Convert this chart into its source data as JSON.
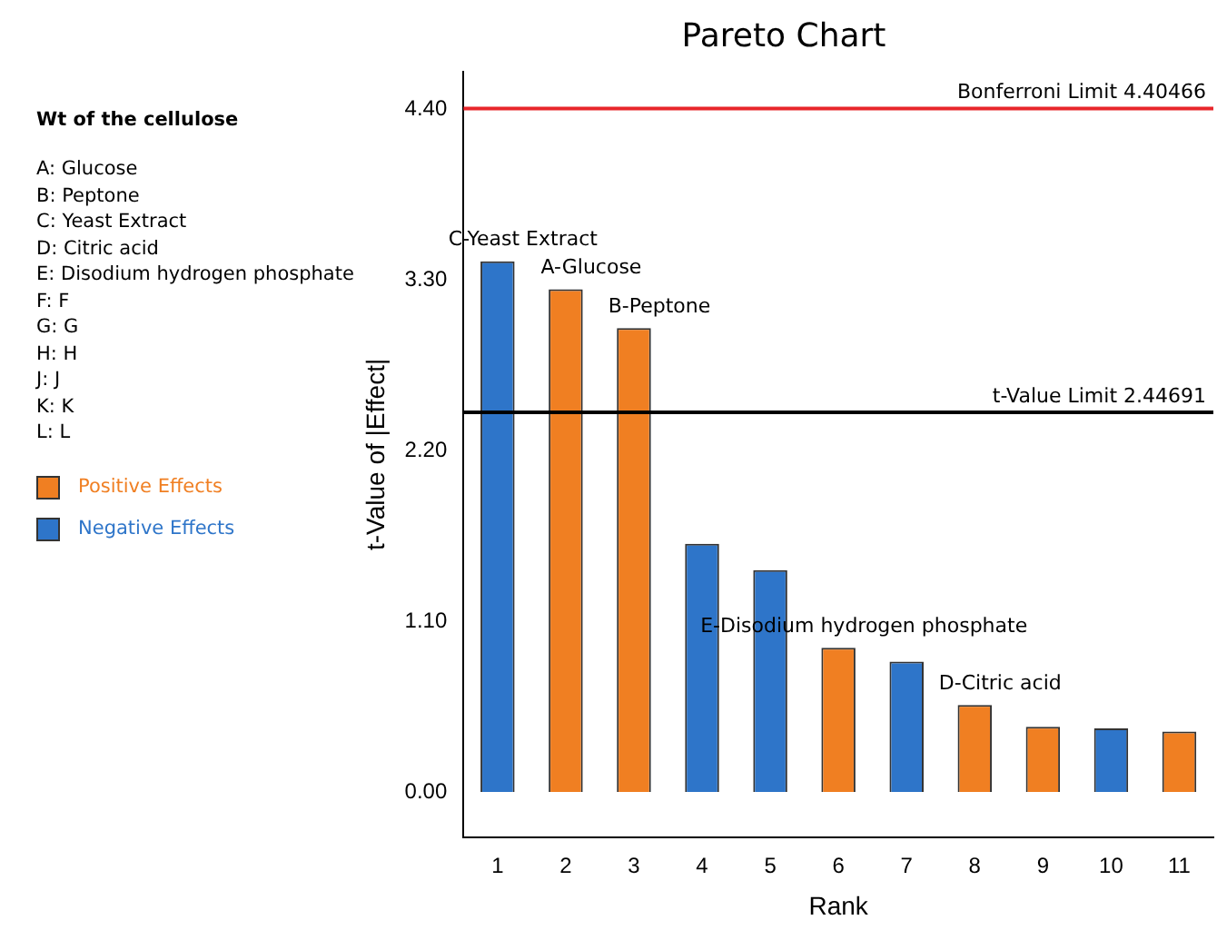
{
  "chart_data": {
    "type": "bar",
    "title": "Pareto Chart",
    "xlabel": "Rank",
    "ylabel": "t-Value of |Effect|",
    "categories": [
      "1",
      "2",
      "3",
      "4",
      "5",
      "6",
      "7",
      "8",
      "9",
      "10",
      "11"
    ],
    "stacked": true,
    "series": [
      {
        "name": "Positive Effects",
        "color": "#f07f22",
        "values": [
          null,
          3.24,
          2.99,
          null,
          null,
          0.93,
          null,
          0.56,
          0.42,
          null,
          0.39
        ]
      },
      {
        "name": "Negative Effects",
        "color": "#2e75c9",
        "values": [
          3.42,
          null,
          null,
          1.6,
          1.43,
          null,
          0.84,
          null,
          null,
          0.41,
          null
        ]
      }
    ],
    "ylim": [
      -0.29,
      4.64
    ],
    "yticks": [
      {
        "value": 0,
        "label": "0.00"
      },
      {
        "value": 1.1,
        "label": "1.10"
      },
      {
        "value": 2.2,
        "label": "2.20"
      },
      {
        "value": 3.3,
        "label": "3.30"
      },
      {
        "value": 4.4,
        "label": "4.40"
      }
    ],
    "ref_lines": [
      {
        "axis": "y",
        "value": 4.40466,
        "label": "Bonferroni Limit 4.40466",
        "color": "#e8262b"
      },
      {
        "axis": "y",
        "value": 2.44691,
        "label": "t-Value Limit 2.44691",
        "color": "#000000"
      }
    ],
    "annotations": [
      "Wt of the cellulose",
      "A: Glucose",
      "B: Peptone",
      "C: Yeast Extract",
      "D: Citric acid",
      "E: Disodium hydrogen phosphate",
      "F: F",
      "G: G",
      "H: H",
      "J: J",
      "K: K",
      "L: L",
      {
        "text": "C-Yeast Extract",
        "x": "1",
        "y": 3.42
      },
      {
        "text": "A-Glucose",
        "x": "2",
        "y": 3.24
      },
      {
        "text": "B-Peptone",
        "x": "3",
        "y": 2.99
      },
      {
        "text": "E-Disodium hydrogen phosphate",
        "x": "6",
        "y": 0.93
      },
      {
        "text": "D-Citric acid",
        "x": "8",
        "y": 0.56
      }
    ],
    "grid": false,
    "legend": "left"
  }
}
